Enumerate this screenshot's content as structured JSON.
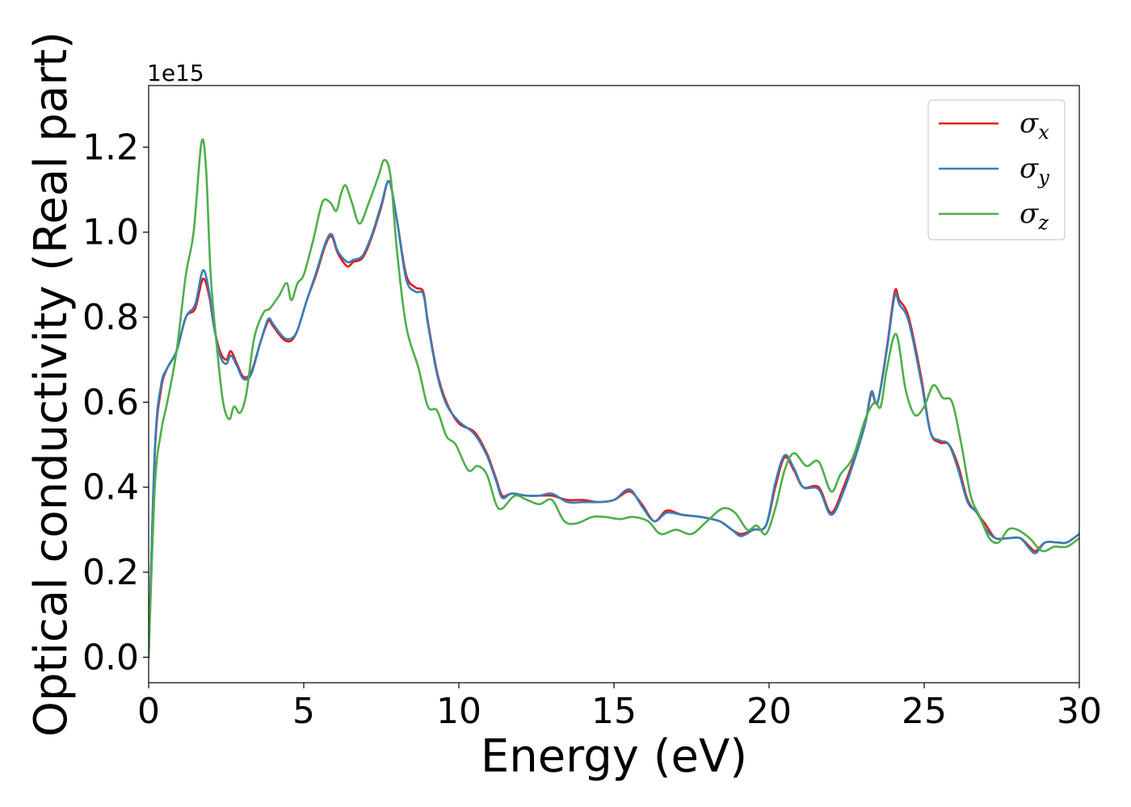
{
  "chart_data": {
    "type": "line",
    "title": "",
    "xlabel": "Energy (eV)",
    "ylabel": "Optical conductivity (Real part)",
    "y_offset_text": "1e15",
    "xlim": [
      0,
      30
    ],
    "ylim": [
      -0.06,
      1.345
    ],
    "x_ticks": [
      0,
      5,
      10,
      15,
      20,
      25,
      30
    ],
    "x_tick_labels": [
      "0",
      "5",
      "10",
      "15",
      "20",
      "25",
      "30"
    ],
    "y_ticks": [
      0.0,
      0.2,
      0.4,
      0.6,
      0.8,
      1.0,
      1.2
    ],
    "y_tick_labels": [
      "0.0",
      "0.2",
      "0.4",
      "0.6",
      "0.8",
      "1.0",
      "1.2"
    ],
    "grid": false,
    "legend_position": "top-right",
    "series": [
      {
        "name": "σx",
        "legend_base": "σ",
        "legend_sub": "x",
        "color": "#e41a1c",
        "x": [
          0,
          0.2,
          0.4,
          0.6,
          0.9,
          1.2,
          1.5,
          1.75,
          1.95,
          2.1,
          2.3,
          2.5,
          2.65,
          2.85,
          3.05,
          3.3,
          3.6,
          3.85,
          4.0,
          4.2,
          4.4,
          4.6,
          4.8,
          5.1,
          5.4,
          5.7,
          5.9,
          6.1,
          6.4,
          6.6,
          6.9,
          7.2,
          7.5,
          7.75,
          8.0,
          8.3,
          8.6,
          8.85,
          9.0,
          9.3,
          9.6,
          10.0,
          10.5,
          10.9,
          11.2,
          11.4,
          11.7,
          12.2,
          12.6,
          13.0,
          13.5,
          14.0,
          14.5,
          15.0,
          15.5,
          15.9,
          16.3,
          16.7,
          17.2,
          17.8,
          18.4,
          18.8,
          19.1,
          19.5,
          19.9,
          20.2,
          20.5,
          20.8,
          21.1,
          21.6,
          22.0,
          22.4,
          22.8,
          23.1,
          23.3,
          23.5,
          23.8,
          24.05,
          24.2,
          24.5,
          24.9,
          25.2,
          25.5,
          25.8,
          26.1,
          26.4,
          26.7,
          27.0,
          27.3,
          27.7,
          28.1,
          28.4,
          28.6,
          28.9,
          29.3,
          29.6,
          30.0
        ],
        "y": [
          0,
          0.48,
          0.63,
          0.68,
          0.72,
          0.8,
          0.82,
          0.89,
          0.85,
          0.78,
          0.72,
          0.7,
          0.72,
          0.69,
          0.66,
          0.67,
          0.74,
          0.79,
          0.78,
          0.76,
          0.745,
          0.745,
          0.77,
          0.84,
          0.9,
          0.97,
          0.99,
          0.95,
          0.92,
          0.93,
          0.94,
          0.99,
          1.06,
          1.12,
          1.03,
          0.9,
          0.87,
          0.86,
          0.79,
          0.67,
          0.6,
          0.55,
          0.53,
          0.48,
          0.42,
          0.38,
          0.385,
          0.38,
          0.38,
          0.38,
          0.37,
          0.37,
          0.365,
          0.37,
          0.39,
          0.36,
          0.32,
          0.345,
          0.335,
          0.33,
          0.32,
          0.3,
          0.29,
          0.3,
          0.31,
          0.4,
          0.47,
          0.44,
          0.4,
          0.4,
          0.34,
          0.4,
          0.48,
          0.55,
          0.62,
          0.6,
          0.73,
          0.86,
          0.84,
          0.8,
          0.66,
          0.53,
          0.505,
          0.5,
          0.45,
          0.37,
          0.34,
          0.31,
          0.28,
          0.28,
          0.28,
          0.26,
          0.25,
          0.27,
          0.27,
          0.27,
          0.29
        ]
      },
      {
        "name": "σy",
        "legend_base": "σ",
        "legend_sub": "y",
        "color": "#377eb8",
        "x": [
          0,
          0.2,
          0.4,
          0.6,
          0.9,
          1.2,
          1.5,
          1.75,
          1.95,
          2.1,
          2.3,
          2.5,
          2.65,
          2.85,
          3.05,
          3.3,
          3.6,
          3.85,
          4.0,
          4.2,
          4.4,
          4.6,
          4.8,
          5.1,
          5.4,
          5.7,
          5.9,
          6.1,
          6.4,
          6.6,
          6.9,
          7.2,
          7.5,
          7.75,
          8.0,
          8.3,
          8.6,
          8.85,
          9.0,
          9.3,
          9.6,
          10.0,
          10.5,
          10.9,
          11.2,
          11.4,
          11.7,
          12.2,
          12.6,
          13.0,
          13.5,
          14.0,
          14.5,
          15.0,
          15.5,
          15.9,
          16.3,
          16.7,
          17.2,
          17.8,
          18.4,
          18.8,
          19.1,
          19.5,
          19.9,
          20.2,
          20.5,
          20.8,
          21.1,
          21.6,
          22.0,
          22.4,
          22.8,
          23.1,
          23.3,
          23.5,
          23.8,
          24.05,
          24.2,
          24.5,
          24.9,
          25.2,
          25.5,
          25.8,
          26.1,
          26.4,
          26.7,
          27.0,
          27.3,
          27.7,
          28.1,
          28.4,
          28.6,
          28.9,
          29.3,
          29.6,
          30.0
        ],
        "y": [
          0,
          0.49,
          0.64,
          0.68,
          0.72,
          0.8,
          0.83,
          0.91,
          0.86,
          0.78,
          0.71,
          0.69,
          0.71,
          0.685,
          0.655,
          0.665,
          0.74,
          0.795,
          0.785,
          0.765,
          0.75,
          0.75,
          0.77,
          0.84,
          0.905,
          0.975,
          0.995,
          0.955,
          0.93,
          0.935,
          0.945,
          0.995,
          1.065,
          1.12,
          1.03,
          0.89,
          0.86,
          0.855,
          0.785,
          0.665,
          0.595,
          0.555,
          0.525,
          0.475,
          0.415,
          0.375,
          0.385,
          0.38,
          0.38,
          0.385,
          0.365,
          0.365,
          0.365,
          0.37,
          0.395,
          0.355,
          0.32,
          0.34,
          0.335,
          0.33,
          0.32,
          0.3,
          0.285,
          0.3,
          0.31,
          0.41,
          0.475,
          0.445,
          0.4,
          0.395,
          0.335,
          0.39,
          0.475,
          0.55,
          0.625,
          0.6,
          0.725,
          0.85,
          0.83,
          0.79,
          0.65,
          0.53,
          0.51,
          0.5,
          0.44,
          0.365,
          0.34,
          0.3,
          0.28,
          0.28,
          0.28,
          0.255,
          0.245,
          0.27,
          0.27,
          0.27,
          0.29
        ]
      },
      {
        "name": "σz",
        "legend_base": "σ",
        "legend_sub": "z",
        "color": "#4daf4a",
        "x": [
          0,
          0.2,
          0.4,
          0.6,
          0.9,
          1.2,
          1.45,
          1.7,
          1.85,
          2.0,
          2.2,
          2.4,
          2.6,
          2.75,
          2.95,
          3.15,
          3.4,
          3.7,
          3.9,
          4.2,
          4.45,
          4.6,
          4.8,
          5.0,
          5.3,
          5.6,
          5.85,
          6.05,
          6.2,
          6.35,
          6.55,
          6.8,
          7.1,
          7.4,
          7.6,
          7.8,
          8.0,
          8.3,
          8.7,
          9.0,
          9.3,
          9.6,
          9.9,
          10.3,
          10.6,
          10.9,
          11.2,
          11.4,
          11.8,
          12.2,
          12.6,
          13.0,
          13.4,
          13.8,
          14.3,
          14.7,
          15.2,
          15.6,
          16.1,
          16.5,
          17.0,
          17.5,
          18.0,
          18.5,
          18.9,
          19.3,
          19.6,
          19.9,
          20.2,
          20.5,
          20.8,
          21.2,
          21.6,
          22.0,
          22.3,
          22.7,
          23.1,
          23.4,
          23.6,
          23.8,
          24.1,
          24.4,
          24.7,
          25.0,
          25.3,
          25.6,
          25.9,
          26.2,
          26.5,
          26.8,
          27.1,
          27.4,
          27.7,
          28.0,
          28.4,
          28.8,
          29.2,
          29.6,
          30.0
        ],
        "y": [
          0,
          0.4,
          0.53,
          0.6,
          0.72,
          0.9,
          1.0,
          1.21,
          1.15,
          0.9,
          0.73,
          0.6,
          0.56,
          0.59,
          0.575,
          0.62,
          0.75,
          0.81,
          0.82,
          0.85,
          0.88,
          0.84,
          0.88,
          0.9,
          0.98,
          1.07,
          1.07,
          1.05,
          1.09,
          1.11,
          1.07,
          1.02,
          1.07,
          1.13,
          1.17,
          1.13,
          0.96,
          0.78,
          0.68,
          0.59,
          0.58,
          0.52,
          0.5,
          0.44,
          0.45,
          0.43,
          0.36,
          0.35,
          0.38,
          0.37,
          0.36,
          0.37,
          0.32,
          0.315,
          0.33,
          0.33,
          0.325,
          0.33,
          0.32,
          0.29,
          0.3,
          0.29,
          0.32,
          0.35,
          0.34,
          0.3,
          0.31,
          0.29,
          0.35,
          0.44,
          0.48,
          0.45,
          0.46,
          0.39,
          0.43,
          0.47,
          0.56,
          0.6,
          0.59,
          0.68,
          0.76,
          0.63,
          0.57,
          0.59,
          0.64,
          0.61,
          0.6,
          0.5,
          0.38,
          0.33,
          0.28,
          0.27,
          0.3,
          0.3,
          0.28,
          0.25,
          0.26,
          0.26,
          0.28
        ]
      }
    ]
  }
}
